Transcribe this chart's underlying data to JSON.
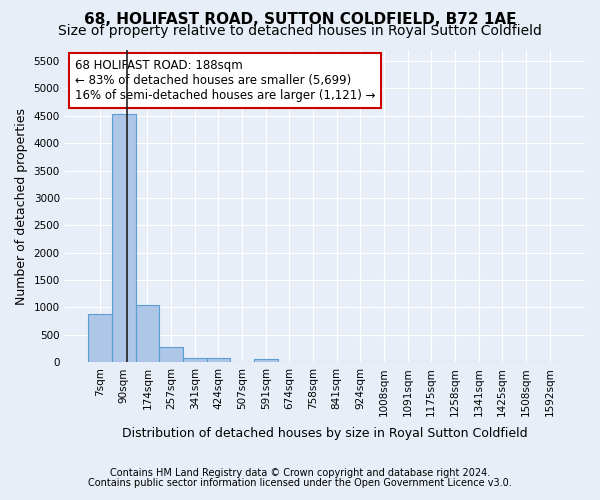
{
  "title": "68, HOLIFAST ROAD, SUTTON COLDFIELD, B72 1AE",
  "subtitle": "Size of property relative to detached houses in Royal Sutton Coldfield",
  "xlabel": "Distribution of detached houses by size in Royal Sutton Coldfield",
  "ylabel": "Number of detached properties",
  "footnote1": "Contains HM Land Registry data © Crown copyright and database right 2024.",
  "footnote2": "Contains public sector information licensed under the Open Government Licence v3.0.",
  "bin_labels": [
    "7sqm",
    "90sqm",
    "174sqm",
    "257sqm",
    "341sqm",
    "424sqm",
    "507sqm",
    "591sqm",
    "674sqm",
    "758sqm",
    "841sqm",
    "924sqm",
    "1008sqm",
    "1091sqm",
    "1175sqm",
    "1258sqm",
    "1341sqm",
    "1425sqm",
    "1508sqm",
    "1592sqm"
  ],
  "bar_values": [
    880,
    4540,
    1050,
    270,
    75,
    70,
    0,
    55,
    0,
    0,
    0,
    0,
    0,
    0,
    0,
    0,
    0,
    0,
    0,
    0
  ],
  "bar_color": "#aec6e8",
  "bar_edge_color": "#5a9fd4",
  "annotation_text": "68 HOLIFAST ROAD: 188sqm\n← 83% of detached houses are smaller (5,699)\n16% of semi-detached houses are larger (1,121) →",
  "annotation_box_color": "#ffffff",
  "annotation_box_edge": "#cc0000",
  "vline_x": 1.15,
  "vline_color": "#222222",
  "ylim": [
    0,
    5700
  ],
  "yticks": [
    0,
    500,
    1000,
    1500,
    2000,
    2500,
    3000,
    3500,
    4000,
    4500,
    5000,
    5500
  ],
  "background_color": "#e8eef7",
  "grid_color": "#ffffff",
  "title_fontsize": 11,
  "subtitle_fontsize": 10,
  "axis_label_fontsize": 9,
  "tick_fontsize": 7.5,
  "annotation_fontsize": 8.5,
  "footnote_fontsize": 7
}
